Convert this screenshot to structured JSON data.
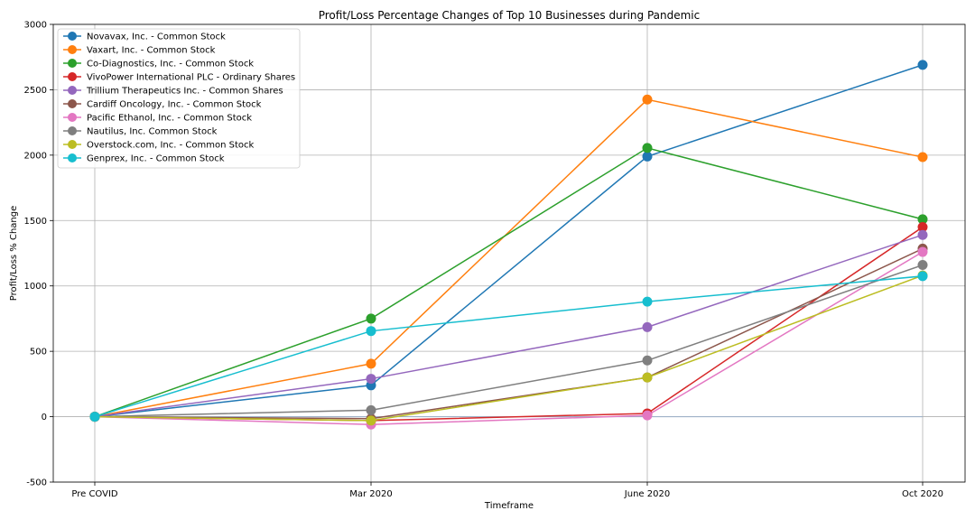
{
  "chart_data": {
    "type": "line",
    "title": "Profit/Loss Percentage Changes of Top 10 Businesses during Pandemic",
    "xlabel": "Timeframe",
    "ylabel": "Profit/Loss % Change",
    "categories": [
      "Pre COVID",
      "Mar 2020",
      "June 2020",
      "Oct 2020"
    ],
    "ylim": [
      -500,
      3000
    ],
    "yticks": [
      -500,
      0,
      500,
      1000,
      1500,
      2000,
      2500,
      3000
    ],
    "grid": true,
    "legend_position": "top-left",
    "baseline_at_zero": true,
    "series": [
      {
        "name": "Novavax, Inc. - Common Stock",
        "color": "#1f77b4",
        "values": [
          0,
          240,
          1990,
          2690
        ]
      },
      {
        "name": "Vaxart, Inc. - Common Stock",
        "color": "#ff7f0e",
        "values": [
          0,
          405,
          2425,
          1985
        ]
      },
      {
        "name": "Co-Diagnostics, Inc. - Common Stock",
        "color": "#2ca02c",
        "values": [
          0,
          750,
          2055,
          1510
        ]
      },
      {
        "name": "VivoPower International PLC - Ordinary Shares",
        "color": "#d62728",
        "values": [
          0,
          -30,
          25,
          1450
        ]
      },
      {
        "name": "Trillium Therapeutics Inc. - Common Shares",
        "color": "#9467bd",
        "values": [
          0,
          290,
          685,
          1390
        ]
      },
      {
        "name": "Cardiff Oncology, Inc. - Common Stock",
        "color": "#8c564b",
        "values": [
          0,
          -15,
          300,
          1285
        ]
      },
      {
        "name": "Pacific Ethanol, Inc. - Common Stock",
        "color": "#e377c2",
        "values": [
          0,
          -60,
          10,
          1260
        ]
      },
      {
        "name": "Nautilus, Inc. Common Stock",
        "color": "#7f7f7f",
        "values": [
          0,
          50,
          430,
          1160
        ]
      },
      {
        "name": "Overstock.com, Inc. - Common Stock",
        "color": "#bcbd22",
        "values": [
          0,
          -30,
          300,
          1080
        ]
      },
      {
        "name": "Genprex, Inc. - Common Stock",
        "color": "#17becf",
        "values": [
          0,
          655,
          880,
          1075
        ]
      }
    ]
  }
}
